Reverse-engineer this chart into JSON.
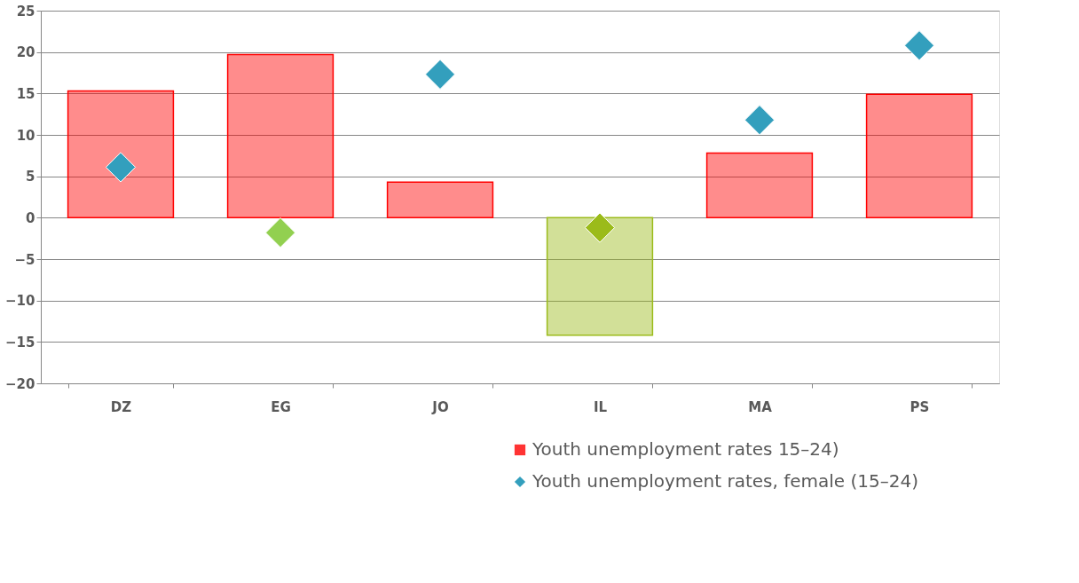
{
  "chart_data": {
    "type": "bar",
    "categories": [
      "DZ",
      "EG",
      "JO",
      "IL",
      "MA",
      "PS"
    ],
    "series": [
      {
        "name": "Youth unemployment rates 15–24)",
        "color": "#ff0000",
        "colors": [
          "#ff0000",
          "#ff0000",
          "#ff0000",
          "#9bbb1a",
          "#ff0000",
          "#ff0000"
        ],
        "values": [
          15.3,
          19.7,
          4.3,
          -14.2,
          7.8,
          14.9
        ]
      },
      {
        "name": "Youth unemployment rates, female (15–24)",
        "type": "scatter",
        "marker": "diamond",
        "color": "#339fbd",
        "colors": [
          "#339fbd",
          "#92d050",
          "#339fbd",
          "#9bbb1a",
          "#339fbd",
          "#339fbd"
        ],
        "values": [
          6.1,
          -1.8,
          17.3,
          -1.2,
          11.8,
          20.8
        ]
      }
    ],
    "ylim": [
      -20,
      25
    ],
    "yticks": [
      -20,
      -15,
      -10,
      -5,
      0,
      5,
      10,
      15,
      20,
      25
    ],
    "grid": "y",
    "legend": "bottom right"
  }
}
